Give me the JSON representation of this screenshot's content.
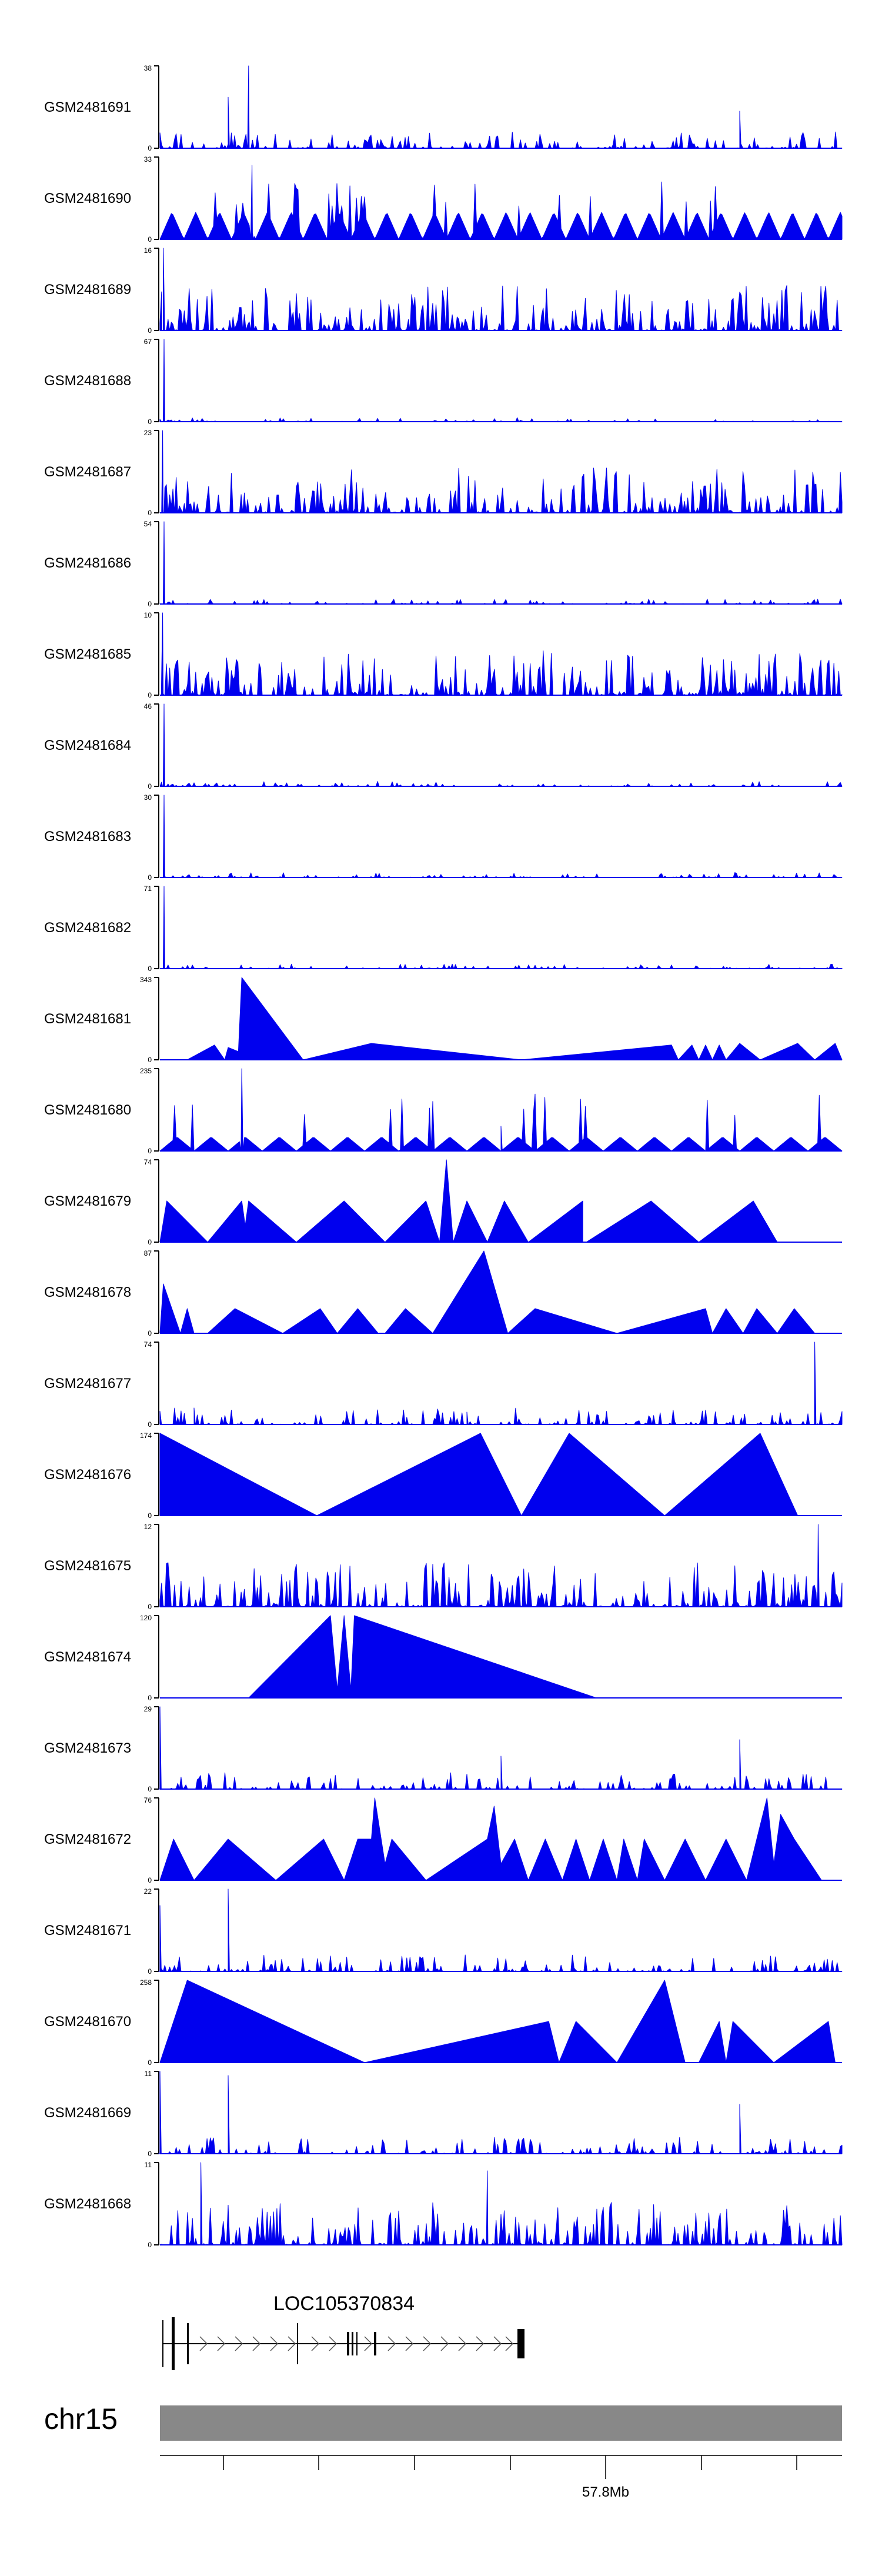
{
  "chart_data": {
    "type": "area",
    "colors": {
      "signal": "#0000ee",
      "axis": "#000000",
      "chrom_bar": "#888888",
      "gene": "#000000"
    },
    "tracks": [
      {
        "name": "GSM2481691",
        "ymax": 38,
        "pattern": "sparse_peaks",
        "peaks": [
          [
            0.1,
            0.62
          ],
          [
            0.13,
            1.0
          ],
          [
            0.85,
            0.45
          ]
        ]
      },
      {
        "name": "GSM2481690",
        "ymax": 33,
        "pattern": "triangles",
        "peaks": [
          [
            0.135,
            0.9
          ]
        ]
      },
      {
        "name": "GSM2481689",
        "ymax": 16,
        "pattern": "dense",
        "peaks": [
          [
            0.005,
            1.0
          ]
        ]
      },
      {
        "name": "GSM2481688",
        "ymax": 67,
        "pattern": "spike_start",
        "peaks": [
          [
            0.006,
            1.0
          ]
        ]
      },
      {
        "name": "GSM2481687",
        "ymax": 23,
        "pattern": "dense",
        "peaks": [
          [
            0.004,
            1.0
          ]
        ]
      },
      {
        "name": "GSM2481686",
        "ymax": 54,
        "pattern": "spike_start",
        "peaks": [
          [
            0.006,
            1.0
          ]
        ]
      },
      {
        "name": "GSM2481685",
        "ymax": 10,
        "pattern": "dense",
        "peaks": [
          [
            0.004,
            1.0
          ]
        ]
      },
      {
        "name": "GSM2481684",
        "ymax": 46,
        "pattern": "spike_start",
        "peaks": [
          [
            0.006,
            1.0
          ]
        ]
      },
      {
        "name": "GSM2481683",
        "ymax": 30,
        "pattern": "spike_start",
        "peaks": [
          [
            0.006,
            1.0
          ]
        ]
      },
      {
        "name": "GSM2481682",
        "ymax": 71,
        "pattern": "spike_start",
        "peaks": [
          [
            0.006,
            1.0
          ]
        ]
      },
      {
        "name": "GSM2481681",
        "ymax": 343,
        "pattern": "broad",
        "points": [
          [
            0.04,
            0
          ],
          [
            0.08,
            0.18
          ],
          [
            0.095,
            0
          ],
          [
            0.1,
            0.15
          ],
          [
            0.115,
            0.1
          ],
          [
            0.12,
            1.0
          ],
          [
            0.21,
            0
          ],
          [
            0.31,
            0.2
          ],
          [
            0.53,
            0
          ],
          [
            0.75,
            0.18
          ],
          [
            0.76,
            0
          ],
          [
            0.78,
            0.18
          ],
          [
            0.79,
            0
          ],
          [
            0.8,
            0.18
          ],
          [
            0.81,
            0
          ],
          [
            0.82,
            0.18
          ],
          [
            0.83,
            0
          ],
          [
            0.85,
            0.2
          ],
          [
            0.88,
            0
          ],
          [
            0.935,
            0.2
          ],
          [
            0.96,
            0
          ],
          [
            0.99,
            0.2
          ],
          [
            1.0,
            0
          ]
        ]
      },
      {
        "name": "GSM2481680",
        "ymax": 235,
        "pattern": "triangles_low",
        "peaks": [
          [
            0.12,
            1.0
          ],
          [
            0.5,
            0.3
          ]
        ]
      },
      {
        "name": "GSM2481679",
        "ymax": 74,
        "pattern": "broad",
        "points": [
          [
            0.0,
            0
          ],
          [
            0.01,
            0.5
          ],
          [
            0.07,
            0
          ],
          [
            0.12,
            0.5
          ],
          [
            0.125,
            0.2
          ],
          [
            0.13,
            0.5
          ],
          [
            0.2,
            0
          ],
          [
            0.27,
            0.5
          ],
          [
            0.33,
            0
          ],
          [
            0.39,
            0.5
          ],
          [
            0.41,
            0
          ],
          [
            0.42,
            1.0
          ],
          [
            0.43,
            0
          ],
          [
            0.45,
            0.5
          ],
          [
            0.48,
            0
          ],
          [
            0.505,
            0.5
          ],
          [
            0.54,
            0
          ],
          [
            0.62,
            0.5
          ],
          [
            0.62,
            0
          ],
          [
            0.625,
            0
          ],
          [
            0.72,
            0.5
          ],
          [
            0.79,
            0
          ],
          [
            0.87,
            0.5
          ],
          [
            0.905,
            0
          ]
        ]
      },
      {
        "name": "GSM2481678",
        "ymax": 87,
        "pattern": "broad",
        "points": [
          [
            0.0,
            0
          ],
          [
            0.005,
            0.6
          ],
          [
            0.03,
            0
          ],
          [
            0.04,
            0.3
          ],
          [
            0.05,
            0
          ],
          [
            0.07,
            0
          ],
          [
            0.11,
            0.3
          ],
          [
            0.18,
            0
          ],
          [
            0.235,
            0.3
          ],
          [
            0.26,
            0
          ],
          [
            0.29,
            0.3
          ],
          [
            0.32,
            0
          ],
          [
            0.33,
            0
          ],
          [
            0.36,
            0.3
          ],
          [
            0.4,
            0
          ],
          [
            0.43,
            0.4
          ],
          [
            0.475,
            1.0
          ],
          [
            0.51,
            0
          ],
          [
            0.55,
            0.3
          ],
          [
            0.67,
            0
          ],
          [
            0.8,
            0.3
          ],
          [
            0.81,
            0
          ],
          [
            0.83,
            0.3
          ],
          [
            0.855,
            0
          ],
          [
            0.875,
            0.3
          ],
          [
            0.905,
            0
          ],
          [
            0.93,
            0.3
          ],
          [
            0.96,
            0
          ]
        ]
      },
      {
        "name": "GSM2481677",
        "ymax": 74,
        "pattern": "sparse_peaks",
        "peaks": [
          [
            0.96,
            1.0
          ],
          [
            0.05,
            0.2
          ],
          [
            0.45,
            0.15
          ]
        ]
      },
      {
        "name": "GSM2481676",
        "ymax": 174,
        "pattern": "broad",
        "points": [
          [
            0.0,
            0
          ],
          [
            0.0,
            1.0
          ],
          [
            0.23,
            0
          ],
          [
            0.47,
            1.0
          ],
          [
            0.53,
            0
          ],
          [
            0.6,
            1.0
          ],
          [
            0.74,
            0
          ],
          [
            0.88,
            1.0
          ],
          [
            0.935,
            0
          ]
        ]
      },
      {
        "name": "GSM2481675",
        "ymax": 12,
        "pattern": "dense",
        "peaks": [
          [
            0.965,
            1.0
          ]
        ]
      },
      {
        "name": "GSM2481674",
        "ymax": 120,
        "pattern": "broad",
        "points": [
          [
            0.13,
            0
          ],
          [
            0.25,
            1.0
          ],
          [
            0.26,
            0.1
          ],
          [
            0.27,
            1.0
          ],
          [
            0.28,
            0.1
          ],
          [
            0.285,
            1.0
          ],
          [
            0.64,
            0
          ]
        ]
      },
      {
        "name": "GSM2481673",
        "ymax": 29,
        "pattern": "sparse_peaks",
        "peaks": [
          [
            0.0,
            1.0
          ],
          [
            0.85,
            0.6
          ],
          [
            0.5,
            0.4
          ]
        ]
      },
      {
        "name": "GSM2481672",
        "ymax": 76,
        "pattern": "broad",
        "points": [
          [
            0.0,
            0
          ],
          [
            0.02,
            0.5
          ],
          [
            0.05,
            0
          ],
          [
            0.1,
            0.5
          ],
          [
            0.17,
            0
          ],
          [
            0.24,
            0.5
          ],
          [
            0.27,
            0
          ],
          [
            0.29,
            0.5
          ],
          [
            0.31,
            0.5
          ],
          [
            0.315,
            1.0
          ],
          [
            0.33,
            0.2
          ],
          [
            0.34,
            0.5
          ],
          [
            0.39,
            0
          ],
          [
            0.48,
            0.5
          ],
          [
            0.49,
            0.9
          ],
          [
            0.5,
            0.2
          ],
          [
            0.52,
            0.5
          ],
          [
            0.54,
            0
          ],
          [
            0.565,
            0.5
          ],
          [
            0.59,
            0
          ],
          [
            0.61,
            0.5
          ],
          [
            0.63,
            0
          ],
          [
            0.65,
            0.5
          ],
          [
            0.67,
            0
          ],
          [
            0.68,
            0.5
          ],
          [
            0.7,
            0
          ],
          [
            0.71,
            0.5
          ],
          [
            0.74,
            0
          ],
          [
            0.77,
            0.5
          ],
          [
            0.8,
            0
          ],
          [
            0.83,
            0.5
          ],
          [
            0.86,
            0
          ],
          [
            0.89,
            1.0
          ],
          [
            0.9,
            0.2
          ],
          [
            0.91,
            0.8
          ],
          [
            0.93,
            0.5
          ],
          [
            0.97,
            0
          ]
        ]
      },
      {
        "name": "GSM2481671",
        "ymax": 22,
        "pattern": "sparse_peaks",
        "peaks": [
          [
            0.1,
            1.0
          ],
          [
            0.0,
            0.8
          ]
        ]
      },
      {
        "name": "GSM2481670",
        "ymax": 258,
        "pattern": "broad",
        "points": [
          [
            0.0,
            0
          ],
          [
            0.02,
            0.5
          ],
          [
            0.04,
            1.0
          ],
          [
            0.3,
            0
          ],
          [
            0.57,
            0.5
          ],
          [
            0.585,
            0
          ],
          [
            0.61,
            0.5
          ],
          [
            0.67,
            0
          ],
          [
            0.74,
            1.0
          ],
          [
            0.77,
            0
          ],
          [
            0.79,
            0
          ],
          [
            0.82,
            0.5
          ],
          [
            0.83,
            0
          ],
          [
            0.84,
            0.5
          ],
          [
            0.9,
            0
          ],
          [
            0.98,
            0.5
          ],
          [
            0.99,
            0
          ]
        ]
      },
      {
        "name": "GSM2481669",
        "ymax": 11,
        "pattern": "sparse_peaks",
        "peaks": [
          [
            0.0,
            1.0
          ],
          [
            0.1,
            0.95
          ],
          [
            0.85,
            0.6
          ]
        ]
      },
      {
        "name": "GSM2481668",
        "ymax": 11,
        "pattern": "dense",
        "peaks": [
          [
            0.06,
            1.0
          ],
          [
            0.48,
            0.9
          ]
        ]
      }
    ],
    "gene": {
      "name": "LOC105370834",
      "strand": "+"
    },
    "chromosome": {
      "name": "chr15",
      "tick_label": "57.8Mb"
    }
  }
}
